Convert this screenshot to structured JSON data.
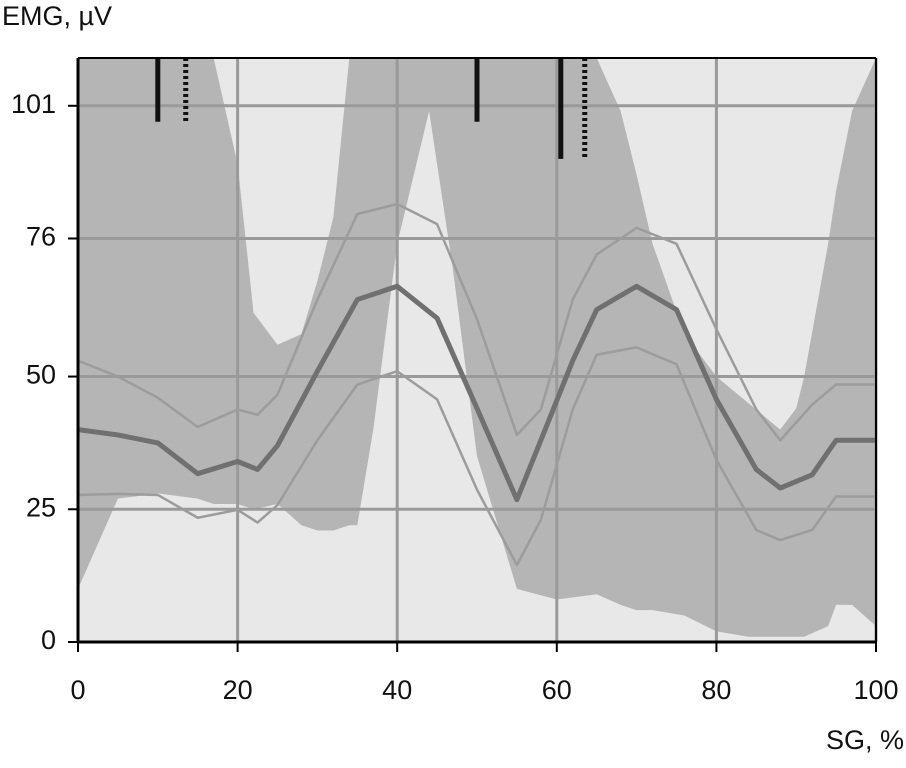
{
  "chart_data": {
    "type": "line",
    "ylabel": "EMG, µV",
    "xlabel": "SG, %",
    "xlim": [
      0,
      100
    ],
    "xticks": [
      0,
      20,
      40,
      60,
      80,
      100
    ],
    "ylim": [
      0,
      110
    ],
    "yticks": [
      0,
      25,
      50,
      76,
      101
    ],
    "grid": true,
    "grid_color": "#9a9a9a",
    "background": "#e8e8e8",
    "band": {
      "color": "#b5b5b5",
      "x": [
        0,
        5,
        10,
        15,
        17,
        20,
        22,
        25,
        28,
        30,
        32,
        34,
        35,
        37,
        40,
        44,
        47,
        50,
        55,
        60,
        65,
        68,
        70,
        72,
        76,
        80,
        84,
        88,
        90,
        91,
        94,
        95,
        97,
        100
      ],
      "lower": [
        10,
        27,
        28,
        27,
        26,
        26,
        25,
        26,
        22,
        21,
        21,
        22,
        22,
        40,
        75,
        100,
        70,
        35,
        10,
        8,
        9,
        7,
        6,
        6,
        5,
        2,
        1,
        1,
        1,
        1,
        3,
        7,
        7,
        3
      ],
      "upper": [
        110,
        110,
        110,
        110,
        110,
        90,
        62,
        56,
        58,
        68,
        80,
        110,
        110,
        110,
        110,
        110,
        110,
        110,
        110,
        110,
        110,
        100,
        88,
        75,
        58,
        50,
        45,
        40,
        44,
        50,
        75,
        85,
        100,
        110
      ]
    },
    "x": [
      0,
      5,
      10,
      15,
      20,
      22.5,
      25,
      30,
      35,
      40,
      45,
      50,
      55,
      58,
      62,
      65,
      70,
      75,
      80,
      85,
      88,
      92,
      95,
      100
    ],
    "series": [
      {
        "color": "#9c9c9c",
        "values": [
          53,
          50,
          46,
          40.5,
          43.8,
          42.8,
          46.6,
          64.5,
          80.6,
          82.5,
          78.7,
          60.8,
          39,
          43.8,
          64.5,
          73,
          78,
          75,
          58.9,
          43.8,
          38,
          44.7,
          48.5,
          48.5
        ]
      },
      {
        "color": "#9c9c9c",
        "values": [
          27.7,
          27.9,
          27.7,
          23.4,
          24.9,
          22.5,
          25.8,
          38,
          48.5,
          51,
          45.7,
          28.7,
          14.5,
          23,
          43.8,
          54.1,
          55.5,
          52.3,
          34.3,
          21.1,
          19.2,
          21.1,
          27.4,
          27.4
        ]
      },
      {
        "color": "#707070",
        "values": [
          40,
          39,
          37.5,
          31.7,
          34,
          32.5,
          37,
          51,
          64.5,
          67,
          61,
          44,
          26.8,
          38,
          53,
          62.6,
          67,
          62.6,
          45.7,
          32.5,
          29,
          31.5,
          38,
          38
        ]
      }
    ],
    "events": [
      {
        "x": 10,
        "y_end": 98,
        "style": "solid"
      },
      {
        "x": 13.5,
        "y_end": 98,
        "style": "dashed"
      },
      {
        "x": 50,
        "y_end": 98,
        "style": "solid"
      },
      {
        "x": 60.5,
        "y_end": 91,
        "style": "solid"
      },
      {
        "x": 63.5,
        "y_end": 91,
        "style": "dashed"
      }
    ]
  }
}
